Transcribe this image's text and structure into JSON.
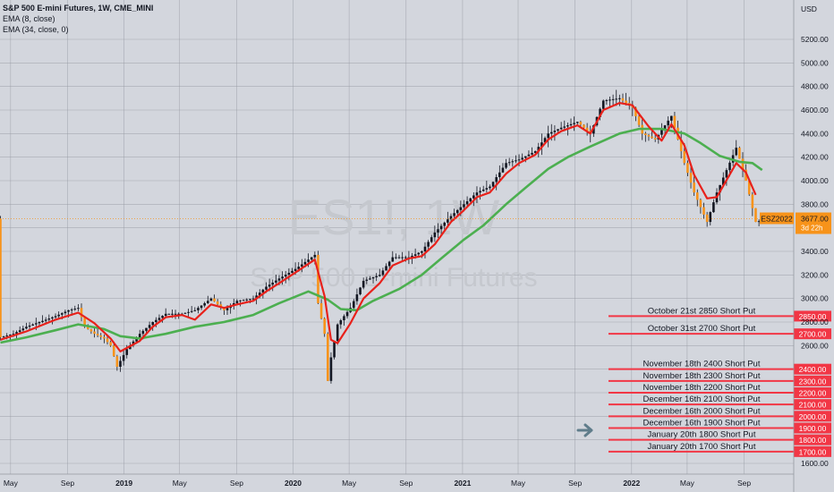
{
  "header": {
    "symbol_line": "S&P 500 E-mini Futures, 1W, CME_MINI",
    "ema_fast": "EMA (8, close)",
    "ema_slow": "EMA (34, close, 0)",
    "currency": "USD"
  },
  "watermark": {
    "ticker": "ES1!, 1W",
    "name": "S&P 500 E-mini Futures"
  },
  "price_badge": {
    "symbol": "ESZ2022",
    "price": "3677.00",
    "countdown": "3d 22h"
  },
  "colors": {
    "background": "#d3d6dd",
    "grid": "#9598a1",
    "up_candle": "#26a69a",
    "candle_body": "#f7931a",
    "candle_dark": "#131722",
    "ema_fast": "#e8211b",
    "ema_slow": "#4caf50",
    "level_line": "#f23645",
    "arrow": "#607d8b"
  },
  "chart_data": {
    "type": "candlestick",
    "y_axis": {
      "range": [
        1500,
        5400
      ],
      "ticks": [
        1600,
        1800,
        2000,
        2200,
        2400,
        2600,
        2800,
        3000,
        3200,
        3400,
        3600,
        3800,
        4000,
        4200,
        4400,
        4600,
        4800,
        5000,
        5200
      ]
    },
    "x_axis": {
      "labels": [
        "May",
        "Sep",
        "2019",
        "May",
        "Sep",
        "2020",
        "May",
        "Sep",
        "2021",
        "May",
        "Sep",
        "2022",
        "May",
        "Sep"
      ],
      "range": [
        "2018-04-09",
        "2022-11-07"
      ]
    },
    "price_series": [
      [
        "2018-04-09",
        2670
      ],
      [
        "2018-05-07",
        2700
      ],
      [
        "2018-06-04",
        2760
      ],
      [
        "2018-07-02",
        2800
      ],
      [
        "2018-08-06",
        2850
      ],
      [
        "2018-09-03",
        2900
      ],
      [
        "2018-09-24",
        2920
      ],
      [
        "2018-10-08",
        2760
      ],
      [
        "2018-10-29",
        2700
      ],
      [
        "2018-11-19",
        2660
      ],
      [
        "2018-12-03",
        2600
      ],
      [
        "2018-12-17",
        2420
      ],
      [
        "2019-01-07",
        2570
      ],
      [
        "2019-02-04",
        2700
      ],
      [
        "2019-03-04",
        2800
      ],
      [
        "2019-04-01",
        2870
      ],
      [
        "2019-05-06",
        2870
      ],
      [
        "2019-06-03",
        2900
      ],
      [
        "2019-07-08",
        3000
      ],
      [
        "2019-08-05",
        2900
      ],
      [
        "2019-09-02",
        2980
      ],
      [
        "2019-10-07",
        3000
      ],
      [
        "2019-11-04",
        3100
      ],
      [
        "2019-12-02",
        3170
      ],
      [
        "2020-01-06",
        3250
      ],
      [
        "2020-02-17",
        3370
      ],
      [
        "2020-02-24",
        2960
      ],
      [
        "2020-03-09",
        2700
      ],
      [
        "2020-03-16",
        2300
      ],
      [
        "2020-03-23",
        2500
      ],
      [
        "2020-04-06",
        2780
      ],
      [
        "2020-05-04",
        2920
      ],
      [
        "2020-06-01",
        3150
      ],
      [
        "2020-07-06",
        3200
      ],
      [
        "2020-08-03",
        3350
      ],
      [
        "2020-09-07",
        3350
      ],
      [
        "2020-10-05",
        3400
      ],
      [
        "2020-11-02",
        3560
      ],
      [
        "2020-12-07",
        3700
      ],
      [
        "2021-01-04",
        3800
      ],
      [
        "2021-02-01",
        3900
      ],
      [
        "2021-03-01",
        3950
      ],
      [
        "2021-04-05",
        4150
      ],
      [
        "2021-05-03",
        4180
      ],
      [
        "2021-06-07",
        4250
      ],
      [
        "2021-07-05",
        4400
      ],
      [
        "2021-08-02",
        4450
      ],
      [
        "2021-09-06",
        4500
      ],
      [
        "2021-10-04",
        4400
      ],
      [
        "2021-11-01",
        4680
      ],
      [
        "2021-12-06",
        4700
      ],
      [
        "2022-01-03",
        4620
      ],
      [
        "2022-01-24",
        4400
      ],
      [
        "2022-02-21",
        4350
      ],
      [
        "2022-03-28",
        4550
      ],
      [
        "2022-04-25",
        4150
      ],
      [
        "2022-05-16",
        3900
      ],
      [
        "2022-06-13",
        3650
      ],
      [
        "2022-07-04",
        3900
      ],
      [
        "2022-08-15",
        4280
      ],
      [
        "2022-09-05",
        4000
      ],
      [
        "2022-09-26",
        3650
      ],
      [
        "2022-10-24",
        3677
      ]
    ],
    "ema_8": [
      [
        "2018-04-09",
        2650
      ],
      [
        "2018-06-04",
        2720
      ],
      [
        "2018-08-06",
        2820
      ],
      [
        "2018-09-24",
        2880
      ],
      [
        "2018-10-29",
        2790
      ],
      [
        "2018-12-03",
        2660
      ],
      [
        "2018-12-24",
        2550
      ],
      [
        "2019-02-04",
        2640
      ],
      [
        "2019-03-04",
        2760
      ],
      [
        "2019-04-01",
        2840
      ],
      [
        "2019-05-06",
        2860
      ],
      [
        "2019-06-03",
        2820
      ],
      [
        "2019-07-08",
        2950
      ],
      [
        "2019-08-05",
        2920
      ],
      [
        "2019-09-02",
        2950
      ],
      [
        "2019-10-07",
        2980
      ],
      [
        "2019-11-04",
        3060
      ],
      [
        "2019-12-02",
        3130
      ],
      [
        "2020-01-06",
        3220
      ],
      [
        "2020-02-17",
        3330
      ],
      [
        "2020-03-09",
        3020
      ],
      [
        "2020-03-23",
        2650
      ],
      [
        "2020-04-06",
        2620
      ],
      [
        "2020-05-04",
        2790
      ],
      [
        "2020-06-01",
        3000
      ],
      [
        "2020-07-06",
        3130
      ],
      [
        "2020-08-03",
        3280
      ],
      [
        "2020-09-07",
        3340
      ],
      [
        "2020-10-05",
        3360
      ],
      [
        "2020-11-02",
        3460
      ],
      [
        "2020-12-07",
        3650
      ],
      [
        "2021-01-04",
        3750
      ],
      [
        "2021-02-01",
        3860
      ],
      [
        "2021-03-01",
        3900
      ],
      [
        "2021-04-05",
        4060
      ],
      [
        "2021-05-03",
        4150
      ],
      [
        "2021-06-07",
        4220
      ],
      [
        "2021-07-05",
        4350
      ],
      [
        "2021-08-02",
        4420
      ],
      [
        "2021-09-06",
        4470
      ],
      [
        "2021-10-04",
        4400
      ],
      [
        "2021-11-01",
        4600
      ],
      [
        "2021-12-06",
        4660
      ],
      [
        "2022-01-03",
        4640
      ],
      [
        "2022-02-07",
        4460
      ],
      [
        "2022-03-07",
        4340
      ],
      [
        "2022-03-28",
        4480
      ],
      [
        "2022-04-25",
        4300
      ],
      [
        "2022-05-16",
        4050
      ],
      [
        "2022-06-13",
        3850
      ],
      [
        "2022-07-04",
        3860
      ],
      [
        "2022-08-15",
        4150
      ],
      [
        "2022-09-05",
        4070
      ],
      [
        "2022-09-26",
        3880
      ]
    ],
    "ema_34": [
      [
        "2018-04-09",
        2625
      ],
      [
        "2018-06-04",
        2670
      ],
      [
        "2018-08-06",
        2730
      ],
      [
        "2018-09-24",
        2780
      ],
      [
        "2018-11-19",
        2740
      ],
      [
        "2018-12-24",
        2680
      ],
      [
        "2019-02-04",
        2660
      ],
      [
        "2019-04-01",
        2700
      ],
      [
        "2019-06-03",
        2760
      ],
      [
        "2019-08-05",
        2800
      ],
      [
        "2019-10-07",
        2860
      ],
      [
        "2019-12-02",
        2960
      ],
      [
        "2020-02-03",
        3060
      ],
      [
        "2020-03-16",
        2990
      ],
      [
        "2020-04-13",
        2910
      ],
      [
        "2020-05-18",
        2900
      ],
      [
        "2020-06-22",
        2980
      ],
      [
        "2020-08-17",
        3080
      ],
      [
        "2020-10-05",
        3200
      ],
      [
        "2020-11-16",
        3340
      ],
      [
        "2021-01-04",
        3500
      ],
      [
        "2021-02-15",
        3620
      ],
      [
        "2021-04-05",
        3800
      ],
      [
        "2021-05-17",
        3940
      ],
      [
        "2021-07-05",
        4100
      ],
      [
        "2021-08-16",
        4200
      ],
      [
        "2021-10-04",
        4290
      ],
      [
        "2021-12-06",
        4400
      ],
      [
        "2022-01-17",
        4440
      ],
      [
        "2022-03-07",
        4440
      ],
      [
        "2022-04-25",
        4400
      ],
      [
        "2022-05-30",
        4320
      ],
      [
        "2022-07-11",
        4210
      ],
      [
        "2022-08-22",
        4160
      ],
      [
        "2022-09-19",
        4150
      ],
      [
        "2022-10-10",
        4090
      ]
    ],
    "levels": [
      {
        "label": "October 21st 2850 Short Put",
        "price": 2850,
        "tag": "2850.00"
      },
      {
        "label": "October 31st 2700 Short Put",
        "price": 2700,
        "tag": "2700.00"
      },
      {
        "label": "November 18th 2400 Short Put",
        "price": 2400,
        "tag": "2400.00"
      },
      {
        "label": "November 18th 2300 Short Put",
        "price": 2300,
        "tag": "2300.00"
      },
      {
        "label": "November 18th 2200 Short Put",
        "price": 2200,
        "tag": "2200.00"
      },
      {
        "label": "December 16th 2100 Short Put",
        "price": 2100,
        "tag": "2100.00"
      },
      {
        "label": "December 16th 2000 Short Put",
        "price": 2000,
        "tag": "2000.00"
      },
      {
        "label": "December 16th 1900 Short Put",
        "price": 1900,
        "tag": "1900.00"
      },
      {
        "label": "January 20th 1800 Short Put",
        "price": 1800,
        "tag": "1800.00"
      },
      {
        "label": "January 20th 1700 Short Put",
        "price": 1700,
        "tag": "1700.00"
      }
    ]
  }
}
